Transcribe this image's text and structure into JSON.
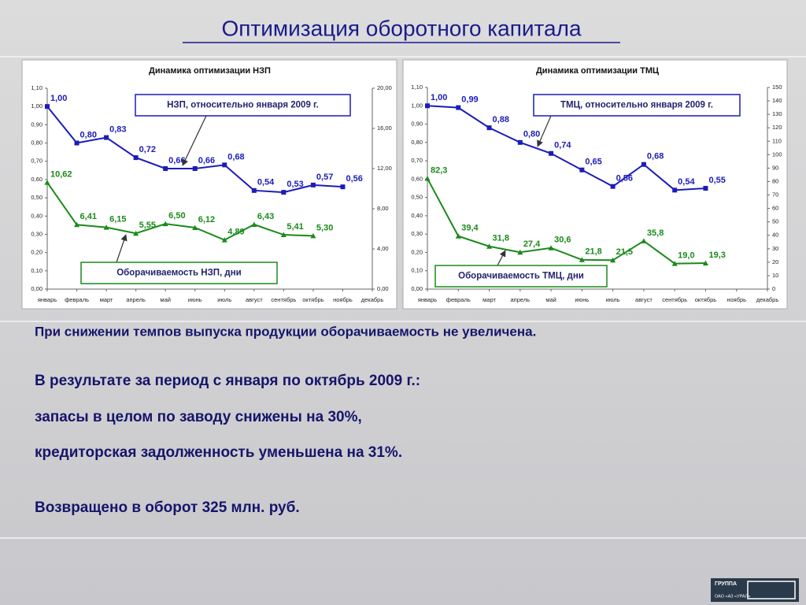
{
  "title": "Оптимизация оборотного капитала",
  "chart_data": [
    {
      "type": "line",
      "title": "Динамика оптимизации НЗП",
      "categories": [
        "январь",
        "февраль",
        "март",
        "апрель",
        "май",
        "июнь",
        "июль",
        "август",
        "сентябрь",
        "октябрь",
        "ноябрь",
        "декабрь"
      ],
      "series": [
        {
          "name": "НЗП, относительно января 2009 г.",
          "color": "#1c1cb8",
          "values": [
            1.0,
            0.8,
            0.83,
            0.72,
            0.66,
            0.66,
            0.68,
            0.54,
            0.53,
            0.57,
            0.56,
            null
          ],
          "value_labels": [
            "1,00",
            "0,80",
            "0,83",
            "0,72",
            "0,66",
            "0,66",
            "0,68",
            "0,54",
            "0,53",
            "0,57",
            "0,56",
            null
          ]
        },
        {
          "name": "Оборачиваемость НЗП, дни",
          "color": "#1a8a1a",
          "axis": "y2",
          "values": [
            10.62,
            6.41,
            6.15,
            5.55,
            6.5,
            6.12,
            4.89,
            6.43,
            5.41,
            5.3,
            null,
            null
          ],
          "value_labels": [
            "10,62",
            "6,41",
            "6,15",
            "5,55",
            "6,50",
            "6,12",
            "4,89",
            "6,43",
            "5,41",
            "5,30",
            null,
            null
          ]
        }
      ],
      "ylim": [
        0,
        1.1
      ],
      "yticks": [
        {
          "value": 0,
          "label": "0,00"
        },
        {
          "value": 0.1,
          "label": "0,10"
        },
        {
          "value": 0.2,
          "label": "0,20"
        },
        {
          "value": 0.3,
          "label": "0,30"
        },
        {
          "value": 0.4,
          "label": "0,40"
        },
        {
          "value": 0.5,
          "label": "0,50"
        },
        {
          "value": 0.6,
          "label": "0,60"
        },
        {
          "value": 0.7,
          "label": "0,70"
        },
        {
          "value": 0.8,
          "label": "0,80"
        },
        {
          "value": 0.9,
          "label": "0,90"
        },
        {
          "value": 1.0,
          "label": "1,00"
        },
        {
          "value": 1.1,
          "label": "1,10"
        }
      ],
      "y2lim": [
        0,
        20
      ],
      "y2ticks": [
        {
          "value": 0,
          "label": "0,00"
        },
        {
          "value": 4,
          "label": "4,00"
        },
        {
          "value": 8,
          "label": "8,00"
        },
        {
          "value": 12,
          "label": "12,00"
        },
        {
          "value": 16,
          "label": "16,00"
        },
        {
          "value": 20,
          "label": "20,00"
        }
      ]
    },
    {
      "type": "line",
      "title": "Динамика оптимизации ТМЦ",
      "categories": [
        "январь",
        "февраль",
        "март",
        "апрель",
        "май",
        "июнь",
        "июль",
        "август",
        "сентябрь",
        "октябрь",
        "ноябрь",
        "декабрь"
      ],
      "series": [
        {
          "name": "ТМЦ, относительно января 2009 г.",
          "color": "#1c1cb8",
          "values": [
            1.0,
            0.99,
            0.88,
            0.8,
            0.74,
            0.65,
            0.56,
            0.68,
            0.54,
            0.55,
            null,
            null
          ],
          "value_labels": [
            "1,00",
            "0,99",
            "0,88",
            "0,80",
            "0,74",
            "0,65",
            "0,56",
            "0,68",
            "0,54",
            "0,55",
            null,
            null
          ]
        },
        {
          "name": "Оборачиваемость ТМЦ, дни",
          "color": "#1a8a1a",
          "axis": "y2",
          "values": [
            82.3,
            39.4,
            31.8,
            27.4,
            30.6,
            21.8,
            21.5,
            35.8,
            19.0,
            19.3,
            null,
            null
          ],
          "value_labels": [
            "82,3",
            "39,4",
            "31,8",
            "27,4",
            "30,6",
            "21,8",
            "21,5",
            "35,8",
            "19,0",
            "19,3",
            null,
            null
          ]
        }
      ],
      "ylim": [
        0,
        1.1
      ],
      "yticks": [
        {
          "value": 0,
          "label": "0,00"
        },
        {
          "value": 0.1,
          "label": "0,10"
        },
        {
          "value": 0.2,
          "label": "0,20"
        },
        {
          "value": 0.3,
          "label": "0,30"
        },
        {
          "value": 0.4,
          "label": "0,40"
        },
        {
          "value": 0.5,
          "label": "0,50"
        },
        {
          "value": 0.6,
          "label": "0,60"
        },
        {
          "value": 0.7,
          "label": "0,70"
        },
        {
          "value": 0.8,
          "label": "0,80"
        },
        {
          "value": 0.9,
          "label": "0,90"
        },
        {
          "value": 1.0,
          "label": "1,00"
        },
        {
          "value": 1.1,
          "label": "1,10"
        }
      ],
      "y2lim": [
        0,
        150
      ],
      "y2ticks": [
        0,
        10,
        20,
        30,
        40,
        50,
        60,
        70,
        80,
        90,
        100,
        110,
        120,
        130,
        140,
        150
      ]
    }
  ],
  "text": {
    "paragraphs": [
      "При снижении темпов выпуска продукции оборачиваемость не увеличена.",
      "В результате за период с января по октябрь 2009 г.:",
      "запасы в целом по заводу снижены на 30%,",
      "кредиторская задолженность уменьшена на 31%.",
      "Возвращено в оборот 325 млн. руб."
    ]
  },
  "logo": {
    "group": "ГРУППА",
    "company": "ОАО «АЗ «УРАЛ»"
  }
}
